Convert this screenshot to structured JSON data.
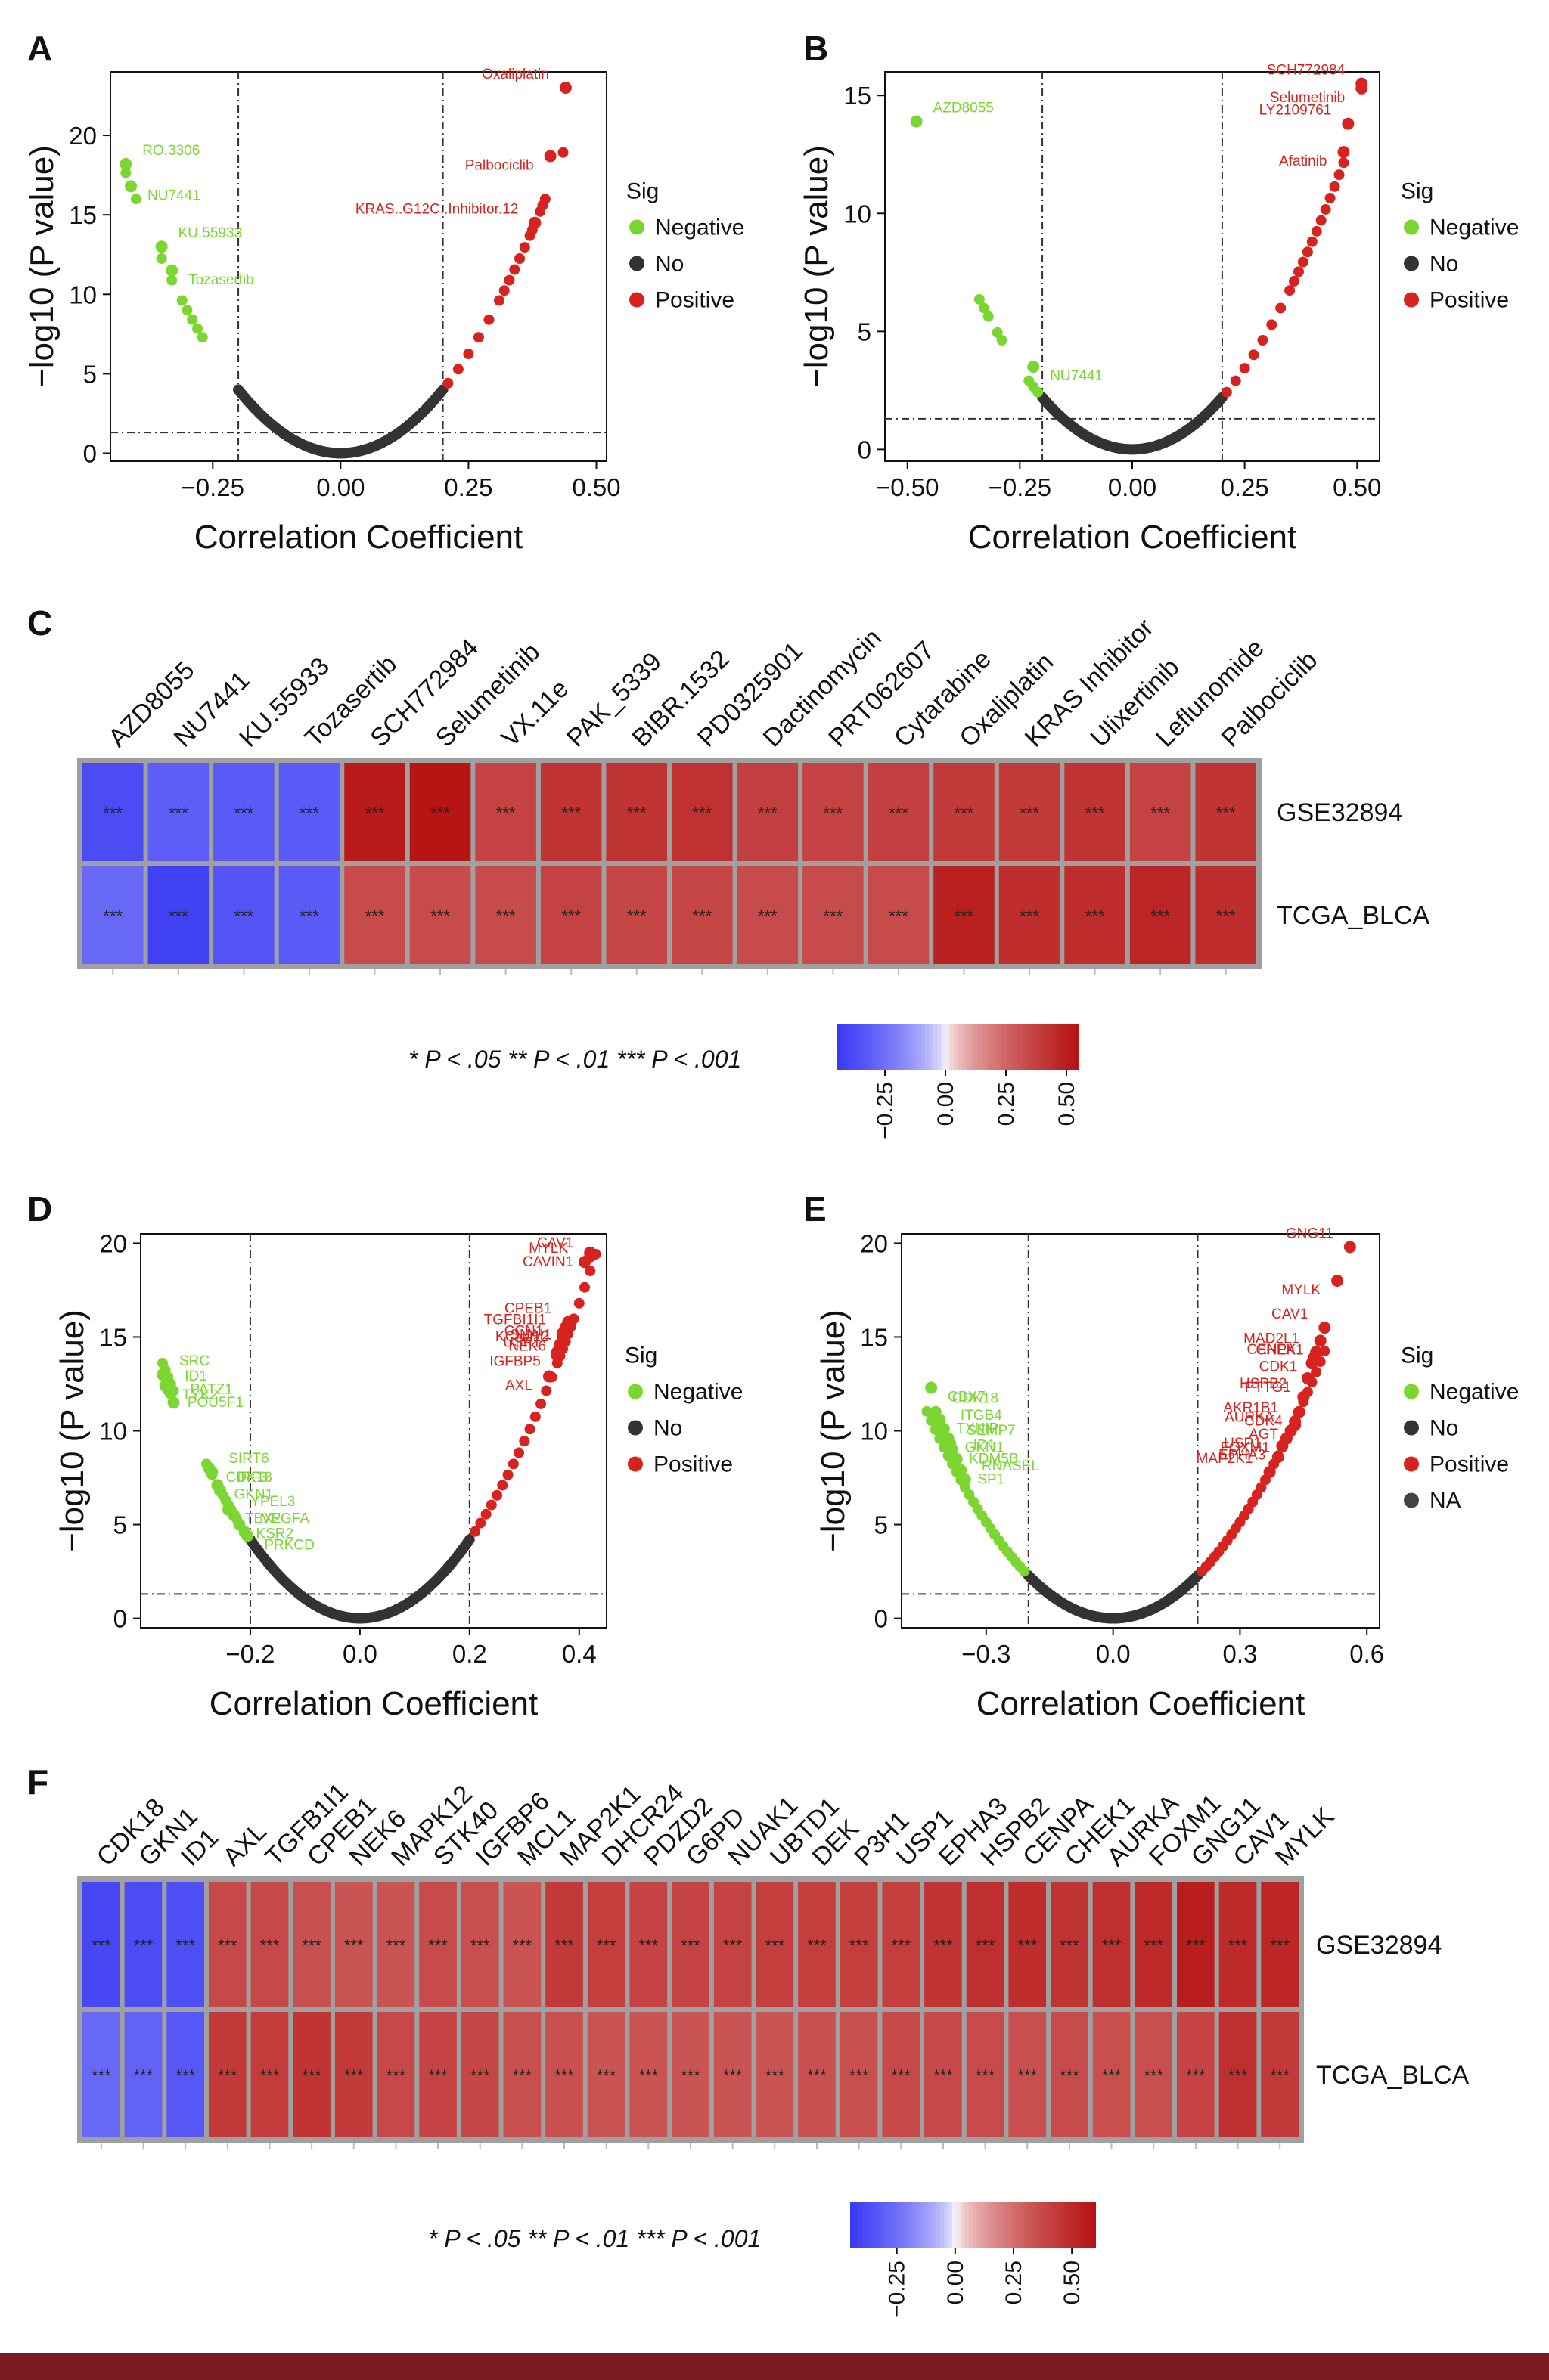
{
  "colors": {
    "negative": "#7cd632",
    "no": "#333333",
    "positive": "#d7231f",
    "na": "#444444",
    "heat_low": "#3b3bf5",
    "heat_mid": "#ffffff",
    "heat_high": "#b71414",
    "grid": "#9a9a9a",
    "footer": "#7a1a20"
  },
  "legend_text": {
    "sig_title": "Sig",
    "negative": "Negative",
    "no": "No",
    "positive": "Positive",
    "na": "NA",
    "significance": "* P < .05 ** P < .01 *** P < .001",
    "star_label": "***"
  },
  "chart_data": [
    {
      "id": "A",
      "type": "scatter",
      "panel_label": "A",
      "xlabel": "Correlation Coefficient",
      "ylabel": "−log10 (P value)",
      "xlim": [
        -0.45,
        0.52
      ],
      "ylim": [
        -0.5,
        24
      ],
      "xticks": [
        -0.25,
        0.0,
        0.25,
        0.5
      ],
      "xtick_labels": [
        "−0.25",
        "0.00",
        "0.25",
        "0.50"
      ],
      "yticks": [
        0,
        5,
        10,
        15,
        20
      ],
      "ytick_labels": [
        "0",
        "5",
        "10",
        "15",
        "20"
      ],
      "vlines": [
        -0.2,
        0.2
      ],
      "hline": 1.3,
      "curve_k": 100,
      "neg_x": [
        -0.42,
        -0.41,
        -0.4,
        -0.35,
        -0.33,
        -0.31,
        -0.3,
        -0.29,
        -0.28,
        -0.27
      ],
      "pos_x": [
        0.21,
        0.23,
        0.25,
        0.27,
        0.29,
        0.31,
        0.32,
        0.33,
        0.34,
        0.35,
        0.36,
        0.37,
        0.375,
        0.38,
        0.39,
        0.395,
        0.4,
        0.435
      ],
      "points": [
        {
          "x": -0.42,
          "y": 18.2,
          "label": "RO.3306",
          "sig": "Negative"
        },
        {
          "x": -0.41,
          "y": 16.8,
          "label": "NU7441",
          "sig": "Negative"
        },
        {
          "x": -0.35,
          "y": 13.0,
          "label": "KU.55933",
          "sig": "Negative"
        },
        {
          "x": -0.33,
          "y": 11.5,
          "label": "Tozasertib",
          "sig": "Negative"
        },
        {
          "x": 0.44,
          "y": 23.0,
          "label": "Oxaliplatin",
          "sig": "Positive"
        },
        {
          "x": 0.41,
          "y": 18.7,
          "label": "Palbociclib",
          "sig": "Positive"
        },
        {
          "x": 0.38,
          "y": 14.5,
          "label": "KRAS..G12C..Inhibitor.12",
          "sig": "Positive"
        }
      ],
      "show_na": false
    },
    {
      "id": "B",
      "type": "scatter",
      "panel_label": "B",
      "xlabel": "Correlation Coefficient",
      "ylabel": "−log10 (P value)",
      "xlim": [
        -0.55,
        0.55
      ],
      "ylim": [
        -0.5,
        16
      ],
      "xticks": [
        -0.5,
        -0.25,
        0.0,
        0.25,
        0.5
      ],
      "xtick_labels": [
        "−0.50",
        "−0.25",
        "0.00",
        "0.25",
        "0.50"
      ],
      "yticks": [
        0,
        5,
        10,
        15
      ],
      "ytick_labels": [
        "0",
        "5",
        "10",
        "15"
      ],
      "vlines": [
        -0.2,
        0.2
      ],
      "hline": 1.3,
      "curve_k": 55,
      "neg_x": [
        -0.34,
        -0.33,
        -0.32,
        -0.3,
        -0.29,
        -0.23,
        -0.22,
        -0.21
      ],
      "pos_x": [
        0.21,
        0.23,
        0.25,
        0.27,
        0.29,
        0.31,
        0.33,
        0.35,
        0.36,
        0.37,
        0.38,
        0.39,
        0.4,
        0.41,
        0.42,
        0.43,
        0.44,
        0.45,
        0.46,
        0.47
      ],
      "points": [
        {
          "x": -0.48,
          "y": 13.9,
          "label": "AZD8055",
          "sig": "Negative"
        },
        {
          "x": -0.22,
          "y": 3.5,
          "label": "NU7441",
          "sig": "Negative"
        },
        {
          "x": 0.51,
          "y": 15.5,
          "label": "SCH772984",
          "sig": "Positive"
        },
        {
          "x": 0.51,
          "y": 15.3,
          "label": "Selumetinib",
          "sig": "Positive"
        },
        {
          "x": 0.48,
          "y": 13.8,
          "label": "LY2109761",
          "sig": "Positive"
        },
        {
          "x": 0.47,
          "y": 12.6,
          "label": "Afatinib",
          "sig": "Positive"
        }
      ],
      "show_na": false
    },
    {
      "id": "C",
      "type": "heatmap",
      "panel_label": "C",
      "columns": [
        "AZD8055",
        "NU7441",
        "KU.55933",
        "Tozasertib",
        "SCH772984",
        "Selumetinib",
        "VX.11e",
        "PAK_5339",
        "BIBR.1532",
        "PD0325901",
        "Dactinomycin",
        "PRT062607",
        "Cytarabine",
        "Oxaliplatin",
        "KRAS Inhibitor",
        "Ulixertinib",
        "Leflunomide",
        "Palbociclib"
      ],
      "rows": [
        "GSE32894",
        "TCGA_BLCA"
      ],
      "values": [
        [
          -0.38,
          -0.32,
          -0.33,
          -0.33,
          0.52,
          0.55,
          0.37,
          0.42,
          0.42,
          0.43,
          0.38,
          0.37,
          0.38,
          0.4,
          0.4,
          0.42,
          0.37,
          0.42
        ],
        [
          -0.28,
          -0.42,
          -0.35,
          -0.33,
          0.34,
          0.34,
          0.34,
          0.37,
          0.36,
          0.36,
          0.34,
          0.34,
          0.34,
          0.5,
          0.45,
          0.45,
          0.48,
          0.45
        ]
      ],
      "stars": "***",
      "legend_range": [
        -0.45,
        0.55
      ],
      "legend_ticks": [
        -0.25,
        0.0,
        0.25,
        0.5
      ],
      "legend_tick_labels": [
        "−0.25",
        "0.00",
        "0.25",
        "0.50"
      ]
    },
    {
      "id": "D",
      "type": "scatter",
      "panel_label": "D",
      "xlabel": "Correlation Coefficient",
      "ylabel": "−log10 (P value)",
      "xlim": [
        -0.4,
        0.45
      ],
      "ylim": [
        -0.5,
        20.5
      ],
      "xticks": [
        -0.2,
        0.0,
        0.2,
        0.4
      ],
      "xtick_labels": [
        "−0.2",
        "0.0",
        "0.2",
        "0.4"
      ],
      "yticks": [
        0,
        5,
        10,
        15,
        20
      ],
      "ytick_labels": [
        "0",
        "5",
        "10",
        "15",
        "20"
      ],
      "vlines": [
        -0.2,
        0.2
      ],
      "hline": 1.3,
      "curve_k": 105,
      "neg_x": [
        -0.36,
        -0.355,
        -0.35,
        -0.345,
        -0.34,
        -0.28,
        -0.275,
        -0.27,
        -0.26,
        -0.25,
        -0.245,
        -0.24,
        -0.235,
        -0.23,
        -0.225
      ],
      "pos_x": [
        0.21,
        0.22,
        0.23,
        0.24,
        0.25,
        0.26,
        0.27,
        0.28,
        0.29,
        0.3,
        0.31,
        0.32,
        0.33,
        0.34,
        0.35,
        0.36,
        0.365,
        0.37,
        0.375,
        0.38,
        0.385,
        0.39,
        0.4,
        0.41,
        0.42,
        0.43
      ],
      "points": [
        {
          "x": 0.42,
          "y": 19.3,
          "label": "CAV1",
          "sig": "Positive"
        },
        {
          "x": 0.42,
          "y": 19.5,
          "label": "CAVIN1",
          "sig": "Positive"
        },
        {
          "x": 0.41,
          "y": 19.0,
          "label": "MYLK",
          "sig": "Positive"
        },
        {
          "x": 0.375,
          "y": 15.5,
          "label": "KCNJ12",
          "sig": "Positive"
        },
        {
          "x": 0.38,
          "y": 15.8,
          "label": "CPEB1",
          "sig": "Positive"
        },
        {
          "x": 0.38,
          "y": 15.6,
          "label": "SNAI1",
          "sig": "Positive"
        },
        {
          "x": 0.37,
          "y": 15.2,
          "label": "TGFBI1I1",
          "sig": "Positive"
        },
        {
          "x": 0.37,
          "y": 15.0,
          "label": "NEK6",
          "sig": "Positive"
        },
        {
          "x": 0.365,
          "y": 14.6,
          "label": "CCN1",
          "sig": "Positive"
        },
        {
          "x": 0.36,
          "y": 14.2,
          "label": "IGFBP5",
          "sig": "Positive"
        },
        {
          "x": 0.36,
          "y": 14.0,
          "label": "USP1",
          "sig": "Positive"
        },
        {
          "x": 0.345,
          "y": 12.9,
          "label": "AXL",
          "sig": "Positive"
        },
        {
          "x": -0.36,
          "y": 13.0,
          "label": "SRC",
          "sig": "Negative"
        },
        {
          "x": -0.355,
          "y": 12.4,
          "label": "TYK2",
          "sig": "Negative"
        },
        {
          "x": -0.35,
          "y": 12.2,
          "label": "ID1",
          "sig": "Negative"
        },
        {
          "x": -0.345,
          "y": 12.0,
          "label": "POU5F1",
          "sig": "Negative"
        },
        {
          "x": -0.34,
          "y": 11.5,
          "label": "PATZ1",
          "sig": "Negative"
        },
        {
          "x": -0.275,
          "y": 8.0,
          "label": "CDK18",
          "sig": "Negative"
        },
        {
          "x": -0.27,
          "y": 7.8,
          "label": "SIRT6",
          "sig": "Negative"
        },
        {
          "x": -0.26,
          "y": 7.1,
          "label": "GKN1",
          "sig": "Negative"
        },
        {
          "x": -0.255,
          "y": 6.8,
          "label": "IRF3",
          "sig": "Negative"
        },
        {
          "x": -0.24,
          "y": 5.8,
          "label": "TBX2",
          "sig": "Negative"
        },
        {
          "x": -0.23,
          "y": 5.5,
          "label": "YPEL3",
          "sig": "Negative"
        },
        {
          "x": -0.22,
          "y": 5.0,
          "label": "KSR2",
          "sig": "Negative"
        },
        {
          "x": -0.21,
          "y": 4.6,
          "label": "VEGFA",
          "sig": "Negative"
        },
        {
          "x": -0.205,
          "y": 4.4,
          "label": "PRKCD",
          "sig": "Negative"
        }
      ],
      "show_na": false
    },
    {
      "id": "E",
      "type": "scatter",
      "panel_label": "E",
      "xlabel": "Correlation Coefficient",
      "ylabel": "−log10 (P value)",
      "xlim": [
        -0.5,
        0.63
      ],
      "ylim": [
        -0.5,
        20.5
      ],
      "xticks": [
        -0.3,
        0.0,
        0.3,
        0.6
      ],
      "xtick_labels": [
        "−0.3",
        "0.0",
        "0.3",
        "0.6"
      ],
      "yticks": [
        0,
        5,
        10,
        15,
        20
      ],
      "ytick_labels": [
        "0",
        "5",
        "10",
        "15",
        "20"
      ],
      "vlines": [
        -0.2,
        0.2
      ],
      "hline": 1.3,
      "curve_k": 57,
      "neg_x": [
        -0.44,
        -0.43,
        -0.42,
        -0.41,
        -0.4,
        -0.39,
        -0.38,
        -0.37,
        -0.36,
        -0.35,
        -0.34,
        -0.33,
        -0.32,
        -0.31,
        -0.3,
        -0.29,
        -0.28,
        -0.27,
        -0.26,
        -0.25,
        -0.24,
        -0.23,
        -0.22,
        -0.21
      ],
      "pos_x": [
        0.21,
        0.22,
        0.23,
        0.24,
        0.25,
        0.26,
        0.27,
        0.28,
        0.29,
        0.3,
        0.31,
        0.32,
        0.33,
        0.34,
        0.35,
        0.36,
        0.37,
        0.38,
        0.39,
        0.4,
        0.41,
        0.42,
        0.43,
        0.44,
        0.45,
        0.46,
        0.47,
        0.48,
        0.49,
        0.5
      ],
      "points": [
        {
          "x": 0.56,
          "y": 19.8,
          "label": "GNG11",
          "sig": "Positive"
        },
        {
          "x": 0.53,
          "y": 18.0,
          "label": "MYLK",
          "sig": "Positive"
        },
        {
          "x": 0.5,
          "y": 15.5,
          "label": "CAV1",
          "sig": "Positive"
        },
        {
          "x": 0.49,
          "y": 14.8,
          "label": "CHEK1",
          "sig": "Positive"
        },
        {
          "x": 0.48,
          "y": 14.2,
          "label": "MAD2L1",
          "sig": "Positive"
        },
        {
          "x": 0.475,
          "y": 13.9,
          "label": "CDK1",
          "sig": "Positive"
        },
        {
          "x": 0.47,
          "y": 13.6,
          "label": "CENPA",
          "sig": "Positive"
        },
        {
          "x": 0.46,
          "y": 12.8,
          "label": "PTTG1",
          "sig": "Positive"
        },
        {
          "x": 0.45,
          "y": 11.8,
          "label": "HSPB2",
          "sig": "Positive"
        },
        {
          "x": 0.44,
          "y": 11.0,
          "label": "CDK4",
          "sig": "Positive"
        },
        {
          "x": 0.43,
          "y": 10.5,
          "label": "AKR1B1",
          "sig": "Positive"
        },
        {
          "x": 0.43,
          "y": 10.3,
          "label": "AGT",
          "sig": "Positive"
        },
        {
          "x": 0.42,
          "y": 10.0,
          "label": "AURKA",
          "sig": "Positive"
        },
        {
          "x": 0.41,
          "y": 9.6,
          "label": "FOXM1",
          "sig": "Positive"
        },
        {
          "x": 0.39,
          "y": 8.6,
          "label": "USP1",
          "sig": "Positive"
        },
        {
          "x": 0.4,
          "y": 9.2,
          "label": "EPHA3",
          "sig": "Positive"
        },
        {
          "x": 0.37,
          "y": 7.8,
          "label": "MAP2K1",
          "sig": "Positive"
        },
        {
          "x": -0.43,
          "y": 12.3,
          "label": "CBX7",
          "sig": "Negative"
        },
        {
          "x": -0.42,
          "y": 11.0,
          "label": "CDK18",
          "sig": "Negative"
        },
        {
          "x": -0.41,
          "y": 10.6,
          "label": "TXNIP",
          "sig": "Negative"
        },
        {
          "x": -0.4,
          "y": 10.1,
          "label": "ITGB4",
          "sig": "Negative"
        },
        {
          "x": -0.39,
          "y": 9.6,
          "label": "GKN1",
          "sig": "Negative"
        },
        {
          "x": -0.385,
          "y": 9.3,
          "label": "SEMP7",
          "sig": "Negative"
        },
        {
          "x": -0.38,
          "y": 9.0,
          "label": "KDM5B",
          "sig": "Negative"
        },
        {
          "x": -0.37,
          "y": 8.5,
          "label": "ID1",
          "sig": "Negative"
        },
        {
          "x": -0.36,
          "y": 7.9,
          "label": "SP1",
          "sig": "Negative"
        },
        {
          "x": -0.35,
          "y": 7.4,
          "label": "RNASEL",
          "sig": "Negative"
        }
      ],
      "show_na": true
    },
    {
      "id": "F",
      "type": "heatmap",
      "panel_label": "F",
      "columns": [
        "CDK18",
        "GKN1",
        "ID1",
        "AXL",
        "TGFB1I1",
        "CPEB1",
        "NEK6",
        "MAPK12",
        "STK40",
        "IGFBP6",
        "MCL1",
        "MAP2K1",
        "DHCR24",
        "PDZD2",
        "G6PD",
        "NUAK1",
        "UBTD1",
        "DEK",
        "P3H1",
        "USP1",
        "EPHA3",
        "HSPB2",
        "CENPA",
        "CHEK1",
        "AURKA",
        "FOXM1",
        "GNG11",
        "CAV1",
        "MYLK"
      ],
      "rows": [
        "GSE32894",
        "TCGA_BLCA"
      ],
      "values": [
        [
          -0.4,
          -0.38,
          -0.37,
          0.38,
          0.38,
          0.35,
          0.34,
          0.34,
          0.37,
          0.36,
          0.34,
          0.44,
          0.42,
          0.4,
          0.4,
          0.4,
          0.42,
          0.42,
          0.42,
          0.42,
          0.46,
          0.48,
          0.49,
          0.46,
          0.48,
          0.5,
          0.56,
          0.5,
          0.52
        ],
        [
          -0.28,
          -0.3,
          -0.34,
          0.44,
          0.43,
          0.46,
          0.44,
          0.38,
          0.4,
          0.39,
          0.36,
          0.35,
          0.34,
          0.34,
          0.34,
          0.34,
          0.34,
          0.35,
          0.36,
          0.38,
          0.38,
          0.37,
          0.36,
          0.37,
          0.36,
          0.36,
          0.4,
          0.48,
          0.44
        ]
      ],
      "stars": "***",
      "legend_range": [
        -0.45,
        0.6
      ],
      "legend_ticks": [
        -0.25,
        0.0,
        0.25,
        0.5
      ],
      "legend_tick_labels": [
        "−0.25",
        "0.00",
        "0.25",
        "0.50"
      ]
    }
  ]
}
